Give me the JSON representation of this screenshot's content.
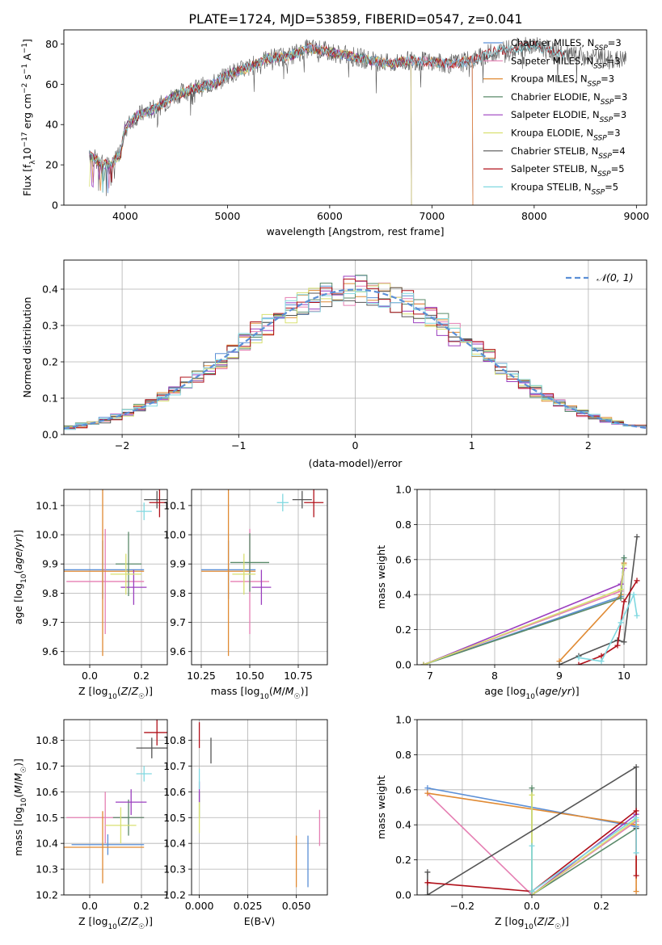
{
  "figure_title": "PLATE=1724, MJD=53859, FIBERID=0547, z=0.041",
  "colors": {
    "Chabrier MILES": "#5b8fd6",
    "Salpeter MILES": "#e57fb3",
    "Kroupa MILES": "#e08a33",
    "Chabrier ELODIE": "#5a8a6a",
    "Salpeter ELODIE": "#9b3fbf",
    "Kroupa ELODIE": "#d8e070",
    "Chabrier STELIB": "#555555",
    "Salpeter STELIB": "#b0101a",
    "Kroupa STELIB": "#80d8e0"
  },
  "chart_data": [
    {
      "id": "spectrum",
      "type": "line",
      "xlabel": "wavelength [Angstrom, rest frame]",
      "ylabel": "Flux [f_λ10^-17 erg cm^-2 s^-1 A^-1]",
      "xlim": [
        3400,
        9100
      ],
      "ylim": [
        0,
        87
      ],
      "xticks": [
        4000,
        5000,
        6000,
        7000,
        8000,
        9000
      ],
      "yticks": [
        0,
        20,
        40,
        60,
        80
      ],
      "grid": false,
      "legend_position": "top-right",
      "legend": [
        {
          "name": "Chabrier MILES",
          "nssp": "3"
        },
        {
          "name": "Salpeter MILES",
          "nssp": "3"
        },
        {
          "name": "Kroupa MILES",
          "nssp": "3"
        },
        {
          "name": "Chabrier ELODIE",
          "nssp": "3"
        },
        {
          "name": "Salpeter ELODIE",
          "nssp": "3"
        },
        {
          "name": "Kroupa ELODIE",
          "nssp": "3"
        },
        {
          "name": "Chabrier STELIB",
          "nssp": "4"
        },
        {
          "name": "Salpeter STELIB",
          "nssp": "5"
        },
        {
          "name": "Kroupa STELIB",
          "nssp": "5"
        }
      ],
      "data_envelope": {
        "x": [
          3650,
          3750,
          3850,
          3950,
          4000,
          4100,
          4300,
          4500,
          4700,
          4900,
          5000,
          5200,
          5400,
          5600,
          5800,
          6000,
          6200,
          6400,
          6600,
          6800,
          7000,
          7200,
          7400,
          7600,
          7800,
          8000,
          8200,
          8400,
          8600,
          8800,
          8900
        ],
        "y": [
          25,
          21,
          20,
          25,
          38,
          44,
          48,
          55,
          58,
          61,
          65,
          68,
          73,
          74,
          78,
          76,
          74,
          72,
          70,
          72,
          71,
          70,
          72,
          76,
          78,
          79,
          76,
          74,
          73,
          72,
          72
        ]
      },
      "model_end_x": {
        "MILES": 7400,
        "ELODIE": 6800,
        "STELIB": 8300
      }
    },
    {
      "id": "residuals",
      "type": "line",
      "xlabel": "(data-model)/error",
      "ylabel": "Normed distribution",
      "xlim": [
        -2.5,
        2.5
      ],
      "ylim": [
        0,
        0.48
      ],
      "xticks": [
        -2,
        -1,
        0,
        1,
        2
      ],
      "yticks": [
        0.0,
        0.1,
        0.2,
        0.3,
        0.4
      ],
      "grid": true,
      "legend_position": "top-right",
      "legend": [
        {
          "name": "𝒩(0, 1)",
          "style": "dashed"
        }
      ],
      "gaussian": {
        "mean": 0,
        "sigma": 1
      },
      "bin_width": 0.1
    },
    {
      "id": "z-age",
      "type": "scatter",
      "xlabel": "Z [log10(Z/Z☉)]",
      "ylabel": "age  [log10(age/yr)]",
      "xlim": [
        -0.1,
        0.3
      ],
      "ylim": [
        9.555,
        10.155
      ],
      "xticks": [
        0.0,
        0.2
      ],
      "yticks": [
        9.6,
        9.7,
        9.8,
        9.9,
        10.0,
        10.1
      ],
      "grid": true,
      "points": [
        {
          "model": "Chabrier MILES",
          "x": 0.05,
          "xerr": 0.16,
          "y": 9.88,
          "yerr": 0.1
        },
        {
          "model": "Salpeter MILES",
          "x": 0.06,
          "xerr": 0.15,
          "y": 9.84,
          "yerr": 0.18
        },
        {
          "model": "Kroupa MILES",
          "x": 0.05,
          "xerr": 0.16,
          "y": 9.875,
          "yerr": 0.29
        },
        {
          "model": "Chabrier ELODIE",
          "x": 0.15,
          "xerr": 0.05,
          "y": 9.9,
          "yerr": 0.11
        },
        {
          "model": "Salpeter ELODIE",
          "x": 0.17,
          "xerr": 0.05,
          "y": 9.82,
          "yerr": 0.06
        },
        {
          "model": "Kroupa ELODIE",
          "x": 0.14,
          "xerr": 0.06,
          "y": 9.865,
          "yerr": 0.07
        },
        {
          "model": "Chabrier STELIB",
          "x": 0.26,
          "xerr": 0.05,
          "y": 10.12,
          "yerr": 0.03
        },
        {
          "model": "Salpeter STELIB",
          "x": 0.27,
          "xerr": 0.04,
          "y": 10.11,
          "yerr": 0.05
        },
        {
          "model": "Kroupa STELIB",
          "x": 0.21,
          "xerr": 0.03,
          "y": 10.08,
          "yerr": 0.03
        }
      ]
    },
    {
      "id": "mass-age",
      "type": "scatter",
      "xlabel": "mass [log10(M/M☉)]",
      "ylabel": "",
      "xlim": [
        10.2,
        10.9
      ],
      "ylim": [
        9.555,
        10.155
      ],
      "xticks": [
        10.25,
        10.5,
        10.75
      ],
      "yticks": [
        9.6,
        9.7,
        9.8,
        9.9,
        10.0,
        10.1
      ],
      "grid": true,
      "points": [
        {
          "model": "Chabrier MILES",
          "x": 10.39,
          "xerr": 0.14,
          "y": 9.88,
          "yerr": 0.1
        },
        {
          "model": "Salpeter MILES",
          "x": 10.5,
          "xerr": 0.1,
          "y": 9.84,
          "yerr": 0.18
        },
        {
          "model": "Kroupa MILES",
          "x": 10.39,
          "xerr": 0.14,
          "y": 9.875,
          "yerr": 0.29
        },
        {
          "model": "Chabrier ELODIE",
          "x": 10.5,
          "xerr": 0.1,
          "y": 9.905,
          "yerr": 0.1
        },
        {
          "model": "Salpeter ELODIE",
          "x": 10.56,
          "xerr": 0.05,
          "y": 9.82,
          "yerr": 0.06
        },
        {
          "model": "Kroupa ELODIE",
          "x": 10.47,
          "xerr": 0.06,
          "y": 9.865,
          "yerr": 0.07
        },
        {
          "model": "Chabrier STELIB",
          "x": 10.77,
          "xerr": 0.05,
          "y": 10.12,
          "yerr": 0.03
        },
        {
          "model": "Salpeter STELIB",
          "x": 10.83,
          "xerr": 0.05,
          "y": 10.11,
          "yerr": 0.05
        },
        {
          "model": "Kroupa STELIB",
          "x": 10.67,
          "xerr": 0.03,
          "y": 10.11,
          "yerr": 0.03
        }
      ]
    },
    {
      "id": "age-weight",
      "type": "line",
      "xlabel": "age  [log10(age/yr)]",
      "ylabel": "mass weight",
      "xlim": [
        6.8,
        10.35
      ],
      "ylim": [
        0,
        1.0
      ],
      "xticks": [
        7,
        8,
        9,
        10
      ],
      "yticks": [
        0.0,
        0.2,
        0.4,
        0.6,
        0.8,
        1.0
      ],
      "grid": true,
      "series": [
        {
          "model": "Chabrier MILES",
          "x": [
            6.9,
            9.95,
            10.0
          ],
          "y": [
            0.0,
            0.39,
            0.61
          ]
        },
        {
          "model": "Salpeter MILES",
          "x": [
            6.9,
            9.95,
            10.0
          ],
          "y": [
            0.0,
            0.42,
            0.58
          ]
        },
        {
          "model": "Kroupa MILES",
          "x": [
            9.0,
            9.95,
            10.0
          ],
          "y": [
            0.02,
            0.4,
            0.58
          ]
        },
        {
          "model": "Chabrier ELODIE",
          "x": [
            6.9,
            9.95,
            10.0
          ],
          "y": [
            0.0,
            0.38,
            0.61
          ]
        },
        {
          "model": "Salpeter ELODIE",
          "x": [
            6.9,
            9.95,
            10.0
          ],
          "y": [
            0.0,
            0.46,
            0.55
          ]
        },
        {
          "model": "Kroupa ELODIE",
          "x": [
            6.9,
            9.95,
            10.0
          ],
          "y": [
            0.0,
            0.43,
            0.57
          ]
        },
        {
          "model": "Chabrier STELIB",
          "x": [
            9.0,
            9.3,
            9.9,
            10.0,
            10.2
          ],
          "y": [
            0.0,
            0.05,
            0.14,
            0.13,
            0.73
          ]
        },
        {
          "model": "Salpeter STELIB",
          "x": [
            9.3,
            9.65,
            9.9,
            10.0,
            10.2
          ],
          "y": [
            0.0,
            0.05,
            0.11,
            0.36,
            0.48
          ]
        },
        {
          "model": "Kroupa STELIB",
          "x": [
            9.3,
            9.65,
            9.95,
            10.15,
            10.2
          ],
          "y": [
            0.04,
            0.02,
            0.24,
            0.4,
            0.28
          ]
        }
      ]
    },
    {
      "id": "z-mass",
      "type": "scatter",
      "xlabel": "Z [log10(Z/Z☉)]",
      "ylabel": "mass [log10(M/M☉)]",
      "xlim": [
        -0.1,
        0.3
      ],
      "ylim": [
        10.2,
        10.88
      ],
      "xticks": [
        0.0,
        0.2
      ],
      "yticks": [
        10.2,
        10.3,
        10.4,
        10.5,
        10.6,
        10.7,
        10.8
      ],
      "grid": true,
      "points": [
        {
          "model": "Chabrier MILES",
          "x": 0.07,
          "xerr": 0.14,
          "y": 10.395,
          "yerr": 0.04
        },
        {
          "model": "Salpeter MILES",
          "x": 0.06,
          "xerr": 0.15,
          "y": 10.5,
          "yerr": 0.1
        },
        {
          "model": "Kroupa MILES",
          "x": 0.05,
          "xerr": 0.16,
          "y": 10.385,
          "yerr": 0.14
        },
        {
          "model": "Chabrier ELODIE",
          "x": 0.15,
          "xerr": 0.06,
          "y": 10.5,
          "yerr": 0.07
        },
        {
          "model": "Salpeter ELODIE",
          "x": 0.16,
          "xerr": 0.06,
          "y": 10.56,
          "yerr": 0.05
        },
        {
          "model": "Kroupa ELODIE",
          "x": 0.12,
          "xerr": 0.06,
          "y": 10.47,
          "yerr": 0.07
        },
        {
          "model": "Chabrier STELIB",
          "x": 0.24,
          "xerr": 0.06,
          "y": 10.77,
          "yerr": 0.04
        },
        {
          "model": "Salpeter STELIB",
          "x": 0.26,
          "xerr": 0.05,
          "y": 10.83,
          "yerr": 0.05
        },
        {
          "model": "Kroupa STELIB",
          "x": 0.21,
          "xerr": 0.03,
          "y": 10.67,
          "yerr": 0.03
        }
      ]
    },
    {
      "id": "ebv-mass",
      "type": "scatter",
      "xlabel": "E(B-V)",
      "ylabel": "",
      "xlim": [
        -0.004,
        0.066
      ],
      "ylim": [
        10.2,
        10.88
      ],
      "xticks": [
        0.0,
        0.025,
        0.05
      ],
      "yticks": [
        10.2,
        10.3,
        10.4,
        10.5,
        10.6,
        10.7,
        10.8
      ],
      "grid": true,
      "points": [
        {
          "model": "Chabrier MILES",
          "x": 0.056,
          "xerr": 0.0,
          "y": 10.33,
          "yerr": 0.1
        },
        {
          "model": "Salpeter MILES",
          "x": 0.062,
          "xerr": 0.0,
          "y": 10.46,
          "yerr": 0.07
        },
        {
          "model": "Kroupa MILES",
          "x": 0.05,
          "xerr": 0.0,
          "y": 10.33,
          "yerr": 0.1
        },
        {
          "model": "Chabrier ELODIE",
          "x": 0.0,
          "xerr": 0.0,
          "y": 10.55,
          "yerr": 0.05
        },
        {
          "model": "Salpeter ELODIE",
          "x": 0.0,
          "xerr": 0.0,
          "y": 10.6,
          "yerr": 0.04
        },
        {
          "model": "Kroupa ELODIE",
          "x": 0.0,
          "xerr": 0.0,
          "y": 10.5,
          "yerr": 0.06
        },
        {
          "model": "Chabrier STELIB",
          "x": 0.006,
          "xerr": 0.0,
          "y": 10.76,
          "yerr": 0.05
        },
        {
          "model": "Salpeter STELIB",
          "x": 0.0,
          "xerr": 0.0,
          "y": 10.82,
          "yerr": 0.05
        },
        {
          "model": "Kroupa STELIB",
          "x": 0.0,
          "xerr": 0.0,
          "y": 10.65,
          "yerr": 0.04
        }
      ]
    },
    {
      "id": "z-weight",
      "type": "line",
      "xlabel": "Z [log10(Z/Z☉)]",
      "ylabel": "mass weight",
      "xlim": [
        -0.33,
        0.33
      ],
      "ylim": [
        0,
        1.0
      ],
      "xticks": [
        -0.2,
        0.0,
        0.2
      ],
      "yticks": [
        0.0,
        0.2,
        0.4,
        0.6,
        0.8,
        1.0
      ],
      "grid": true,
      "series": [
        {
          "model": "Chabrier MILES",
          "x": [
            -0.3,
            0.3
          ],
          "y": [
            0.61,
            0.39
          ]
        },
        {
          "model": "Salpeter MILES",
          "x": [
            -0.3,
            0.0,
            0.3
          ],
          "y": [
            0.58,
            0.0,
            0.42
          ]
        },
        {
          "model": "Kroupa MILES",
          "x": [
            -0.3,
            0.3,
            0.3
          ],
          "y": [
            0.58,
            0.4,
            0.02
          ]
        },
        {
          "model": "Chabrier ELODIE",
          "x": [
            0.0,
            0.0,
            0.3
          ],
          "y": [
            0.61,
            0.0,
            0.38
          ]
        },
        {
          "model": "Salpeter ELODIE",
          "x": [
            0.0,
            0.3
          ],
          "y": [
            0.0,
            0.46
          ]
        },
        {
          "model": "Kroupa ELODIE",
          "x": [
            0.0,
            0.0,
            0.3
          ],
          "y": [
            0.57,
            0.0,
            0.43
          ]
        },
        {
          "model": "Chabrier STELIB",
          "x": [
            -0.3,
            -0.3,
            0.3,
            0.3
          ],
          "y": [
            0.13,
            0.0,
            0.73,
            0.38
          ]
        },
        {
          "model": "Salpeter STELIB",
          "x": [
            -0.3,
            0.0,
            0.3,
            0.3
          ],
          "y": [
            0.07,
            0.02,
            0.48,
            0.11
          ]
        },
        {
          "model": "Kroupa STELIB",
          "x": [
            0.0,
            0.0,
            0.3,
            0.3
          ],
          "y": [
            0.28,
            0.02,
            0.44,
            0.24
          ]
        }
      ]
    }
  ]
}
